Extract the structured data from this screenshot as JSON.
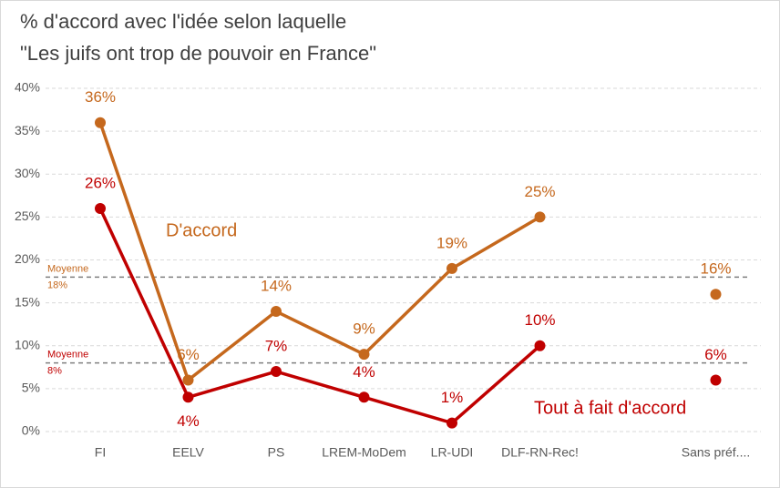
{
  "chart_data": {
    "type": "line",
    "title": [
      "% d'accord avec l'idée selon laquelle",
      "\"Les juifs ont trop de pouvoir en France\""
    ],
    "categories": [
      "FI",
      "EELV",
      "PS",
      "LREM-MoDem",
      "LR-UDI",
      "DLF-RN-Rec!",
      null,
      "Sans préf...."
    ],
    "series": [
      {
        "name": "D'accord",
        "color": "#c5681d",
        "values": [
          36,
          6,
          14,
          9,
          19,
          25,
          null,
          16
        ],
        "value_labels": [
          "36%",
          "6%",
          "14%",
          "9%",
          "19%",
          "25%",
          null,
          "16%"
        ]
      },
      {
        "name": "Tout à fait d'accord",
        "color": "#c00000",
        "values": [
          26,
          4,
          7,
          4,
          1,
          10,
          null,
          6
        ],
        "value_labels": [
          "26%",
          "4%",
          "7%",
          "4%",
          "1%",
          "10%",
          null,
          "6%"
        ]
      }
    ],
    "reference_lines": [
      {
        "label": "Moyenne",
        "value": 18,
        "value_label": "18%",
        "color": "#c5681d"
      },
      {
        "label": "Moyenne",
        "value": 8,
        "value_label": "8%",
        "color": "#c00000"
      }
    ],
    "ylim": [
      0,
      40
    ],
    "yticks": [
      {
        "value": 0,
        "label": "0%"
      },
      {
        "value": 5,
        "label": "5%"
      },
      {
        "value": 10,
        "label": "10%"
      },
      {
        "value": 15,
        "label": "15%"
      },
      {
        "value": 20,
        "label": "20%"
      },
      {
        "value": 25,
        "label": "25%"
      },
      {
        "value": 30,
        "label": "30%"
      },
      {
        "value": 35,
        "label": "35%"
      },
      {
        "value": 40,
        "label": "40%"
      }
    ],
    "grid": true
  }
}
